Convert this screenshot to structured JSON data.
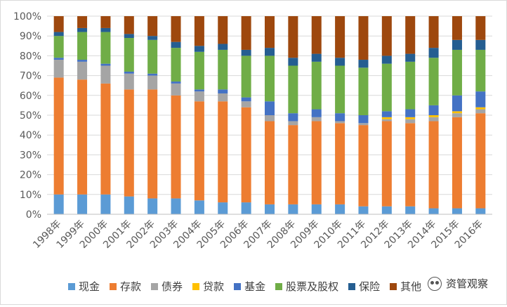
{
  "chart_data": {
    "type": "bar",
    "stacked": true,
    "percent": true,
    "categories": [
      "1998年",
      "1999年",
      "2000年",
      "2001年",
      "2002年",
      "2003年",
      "2004年",
      "2005年",
      "2006年",
      "2007年",
      "2008年",
      "2009年",
      "2010年",
      "2011年",
      "2012年",
      "2013年",
      "2014年",
      "2015年",
      "2016年"
    ],
    "ylim": [
      0,
      100
    ],
    "yticks": [
      "0%",
      "10%",
      "20%",
      "30%",
      "40%",
      "50%",
      "60%",
      "70%",
      "80%",
      "90%",
      "100%"
    ],
    "grid": true,
    "legend_position": "bottom",
    "series": [
      {
        "name": "现金",
        "color": "#5b9bd5",
        "values": [
          10,
          10,
          10,
          9,
          8,
          8,
          7,
          6,
          6,
          5,
          5,
          5,
          5,
          4,
          4,
          4,
          3,
          3,
          3
        ]
      },
      {
        "name": "存款",
        "color": "#ed7d31",
        "values": [
          59,
          58,
          56,
          54,
          55,
          52,
          50,
          51,
          48,
          42,
          40,
          42,
          41,
          41,
          43,
          42,
          44,
          46,
          48
        ]
      },
      {
        "name": "债券",
        "color": "#a5a5a5",
        "values": [
          9,
          9,
          9,
          8,
          7,
          6,
          5,
          4,
          3,
          3,
          2,
          2,
          1,
          1,
          1,
          2,
          2,
          2,
          2
        ]
      },
      {
        "name": "贷款",
        "color": "#ffc000",
        "values": [
          0,
          0,
          0,
          0,
          0,
          0,
          0,
          0,
          0,
          0,
          0,
          0,
          0,
          0,
          1,
          1,
          1,
          1,
          1
        ]
      },
      {
        "name": "基金",
        "color": "#4472c4",
        "values": [
          1,
          1,
          1,
          1,
          1,
          1,
          1,
          2,
          2,
          7,
          4,
          4,
          4,
          4,
          3,
          4,
          5,
          8,
          8
        ]
      },
      {
        "name": "股票及股权",
        "color": "#70ad47",
        "values": [
          11,
          14,
          16,
          17,
          17,
          17,
          19,
          20,
          21,
          23,
          24,
          24,
          24,
          24,
          24,
          24,
          24,
          23,
          21
        ]
      },
      {
        "name": "保险",
        "color": "#255e91",
        "values": [
          2,
          2,
          2,
          2,
          2,
          3,
          3,
          3,
          3,
          4,
          4,
          4,
          4,
          4,
          4,
          4,
          5,
          5,
          5
        ]
      },
      {
        "name": "其他",
        "color": "#9e480e",
        "values": [
          8,
          6,
          6,
          9,
          10,
          13,
          15,
          14,
          17,
          16,
          21,
          19,
          21,
          22,
          20,
          19,
          16,
          12,
          12
        ]
      }
    ]
  },
  "watermark": {
    "text": "资管观察",
    "icon": "wechat-icon"
  }
}
